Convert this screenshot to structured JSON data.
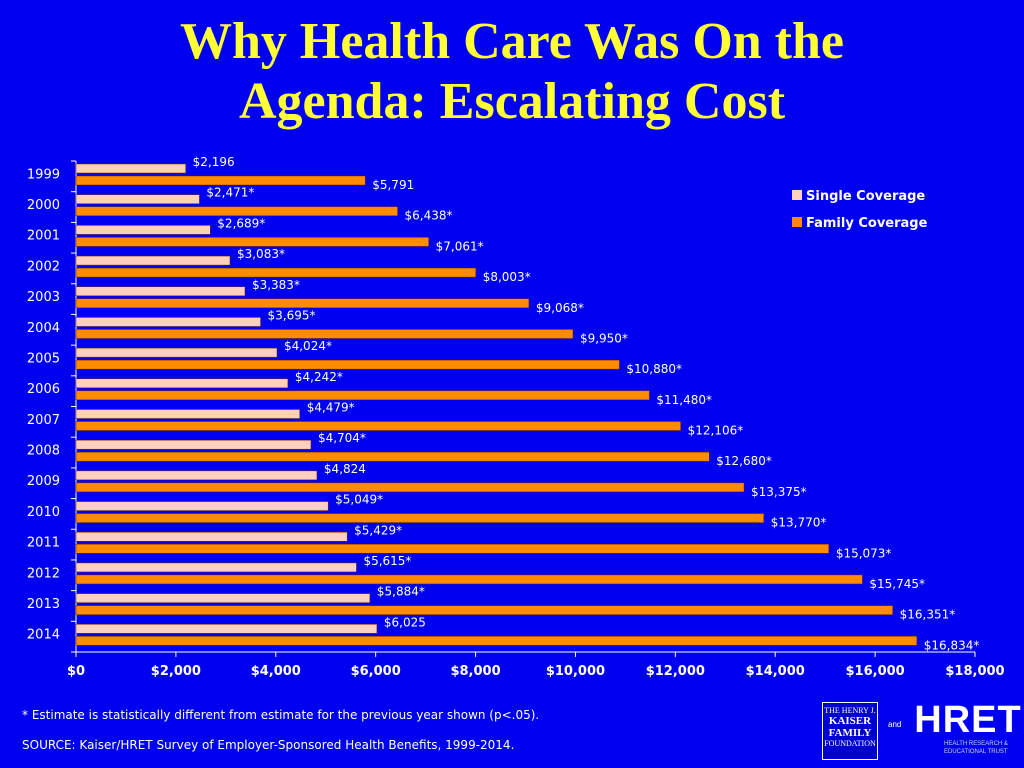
{
  "title_line1": "Why Health Care Was On the",
  "title_line2": "Agenda: Escalating Cost",
  "chart_data": {
    "type": "bar",
    "orientation": "horizontal",
    "categories": [
      "1999",
      "2000",
      "2001",
      "2002",
      "2003",
      "2004",
      "2005",
      "2006",
      "2007",
      "2008",
      "2009",
      "2010",
      "2011",
      "2012",
      "2013",
      "2014"
    ],
    "series": [
      {
        "name": "Single Coverage",
        "color": "#ffd0c0",
        "values": [
          2196,
          2471,
          2689,
          3083,
          3383,
          3695,
          4024,
          4242,
          4479,
          4704,
          4824,
          5049,
          5429,
          5615,
          5884,
          6025
        ],
        "labels": [
          "$2,196",
          "$2,471*",
          "$2,689*",
          "$3,083*",
          "$3,383*",
          "$3,695*",
          "$4,024*",
          "$4,242*",
          "$4,479*",
          "$4,704*",
          "$4,824",
          "$5,049*",
          "$5,429*",
          "$5,615*",
          "$5,884*",
          "$6,025"
        ]
      },
      {
        "name": "Family Coverage",
        "color": "#ff8c00",
        "values": [
          5791,
          6438,
          7061,
          8003,
          9068,
          9950,
          10880,
          11480,
          12106,
          12680,
          13375,
          13770,
          15073,
          15745,
          16351,
          16834
        ],
        "labels": [
          "$5,791",
          "$6,438*",
          "$7,061*",
          "$8,003*",
          "$9,068*",
          "$9,950*",
          "$10,880*",
          "$11,480*",
          "$12,106*",
          "$12,680*",
          "$13,375*",
          "$13,770*",
          "$15,073*",
          "$15,745*",
          "$16,351*",
          "$16,834*"
        ]
      }
    ],
    "xlim": [
      0,
      18000
    ],
    "xticks": [
      0,
      2000,
      4000,
      6000,
      8000,
      10000,
      12000,
      14000,
      16000,
      18000
    ],
    "xtick_labels": [
      "$0",
      "$2,000",
      "$4,000",
      "$6,000",
      "$8,000",
      "$10,000",
      "$12,000",
      "$14,000",
      "$16,000",
      "$18,000"
    ],
    "legend_position": "top-right",
    "label_color": "#ffffff",
    "axis_color": "#ffffff"
  },
  "footnote_star": "* Estimate is statistically different from estimate for the previous year shown (p<.05).",
  "footnote_source": "SOURCE:  Kaiser/HRET Survey of Employer-Sponsored Health Benefits, 1999-2014.",
  "logos": {
    "kff_line1": "THE HENRY J.",
    "kff_line2": "KAISER",
    "kff_line3": "FAMILY",
    "kff_line4": "FOUNDATION",
    "and": "and",
    "hret_word": "HRET",
    "hret_sub1": "HEALTH RESEARCH &",
    "hret_sub2": "EDUCATIONAL TRUST"
  }
}
